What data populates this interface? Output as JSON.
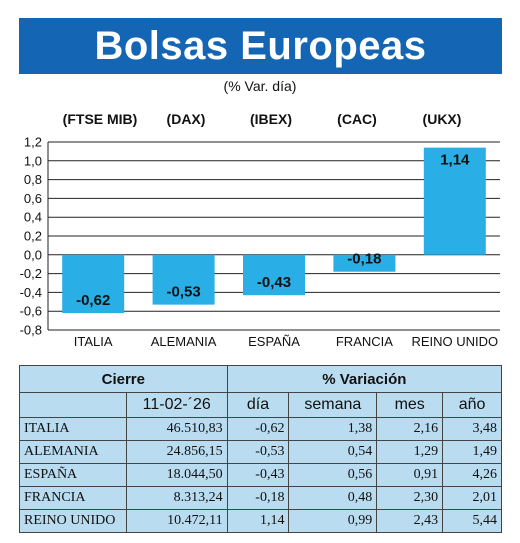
{
  "header": {
    "title": "Bolsas Europeas",
    "subtitle": "(% Var. día)"
  },
  "indices": [
    "(FTSE MIB)",
    "(DAX)",
    "(IBEX)",
    "(CAC)",
    "(UKX)"
  ],
  "chart_data": {
    "type": "bar",
    "title": "Bolsas Europeas",
    "subtitle": "(% Var. día)",
    "categories": [
      "ITALIA",
      "ALEMANIA",
      "ESPAÑA",
      "FRANCIA",
      "REINO UNIDO"
    ],
    "values": [
      -0.62,
      -0.53,
      -0.43,
      -0.18,
      1.14
    ],
    "value_labels": [
      "-0,62",
      "-0,53",
      "-0,43",
      "-0,18",
      "1,14"
    ],
    "ylim": [
      -0.8,
      1.2
    ],
    "yticks": [
      1.2,
      1.0,
      0.8,
      0.6,
      0.4,
      0.2,
      0.0,
      -0.2,
      -0.4,
      -0.6,
      -0.8
    ],
    "ytick_labels": [
      "1,2",
      "1,0",
      "0,8",
      "0,6",
      "0,4",
      "0,2",
      "0,0",
      "-0,2",
      "-0,4",
      "-0,6",
      "-0,8"
    ],
    "grid": true,
    "bar_color": "#29aee6"
  },
  "table": {
    "group_headers": {
      "cierre": "Cierre",
      "variacion": "% Variación"
    },
    "sub_headers": {
      "date": "11-02-´26",
      "dia": "día",
      "semana": "semana",
      "mes": "mes",
      "anio": "año"
    },
    "rows": [
      {
        "name": "ITALIA",
        "cierre": "46.510,83",
        "dia": "-0,62",
        "semana": "1,38",
        "mes": "2,16",
        "anio": "3,48"
      },
      {
        "name": "ALEMANIA",
        "cierre": "24.856,15",
        "dia": "-0,53",
        "semana": "0,54",
        "mes": "1,29",
        "anio": "1,49"
      },
      {
        "name": "ESPAÑA",
        "cierre": "18.044,50",
        "dia": "-0,43",
        "semana": "0,56",
        "mes": "0,91",
        "anio": "4,26"
      },
      {
        "name": "FRANCIA",
        "cierre": "8.313,24",
        "dia": "-0,18",
        "semana": "0,48",
        "mes": "2,30",
        "anio": "2,01"
      },
      {
        "name": "REINO UNIDO",
        "cierre": "10.472,11",
        "dia": "1,14",
        "semana": "0,99",
        "mes": "2,43",
        "anio": "5,44"
      }
    ],
    "background": "#b9dcf0"
  }
}
